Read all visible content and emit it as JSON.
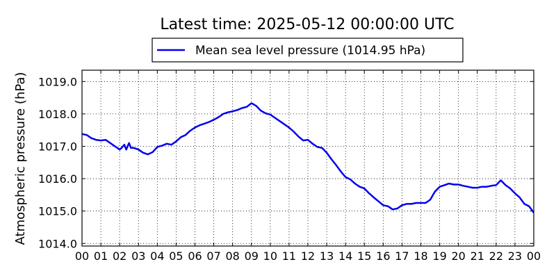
{
  "chart_data": {
    "type": "line",
    "title": "Latest time: 2025-05-12 00:00:00 UTC",
    "xlabel": "",
    "ylabel": "Atmospheric pressure (hPa)",
    "x_tick_labels": [
      "00",
      "01",
      "02",
      "03",
      "04",
      "05",
      "06",
      "07",
      "08",
      "09",
      "10",
      "11",
      "12",
      "13",
      "14",
      "15",
      "16",
      "17",
      "18",
      "19",
      "20",
      "21",
      "22",
      "23",
      "00"
    ],
    "y_tick_labels": [
      "1014.0",
      "1015.0",
      "1016.0",
      "1017.0",
      "1018.0",
      "1019.0"
    ],
    "y_ticks": [
      1014.0,
      1015.0,
      1016.0,
      1017.0,
      1018.0,
      1019.0
    ],
    "xlim": [
      0,
      24
    ],
    "ylim": [
      1013.92,
      1019.35
    ],
    "grid": true,
    "legend_position": "top-center",
    "series": [
      {
        "name": "Mean sea level pressure (1014.95 hPa)",
        "color": "#0000ee",
        "x": [
          0,
          0.25,
          0.5,
          0.75,
          1,
          1.25,
          1.5,
          1.75,
          2,
          2.1,
          2.25,
          2.35,
          2.5,
          2.6,
          2.75,
          3,
          3.25,
          3.5,
          3.75,
          4,
          4.25,
          4.5,
          4.75,
          5,
          5.25,
          5.5,
          5.75,
          6,
          6.25,
          6.5,
          6.75,
          7,
          7.25,
          7.5,
          7.75,
          8,
          8.25,
          8.5,
          8.75,
          9,
          9.1,
          9.25,
          9.5,
          9.75,
          10,
          10.25,
          10.5,
          10.75,
          11,
          11.25,
          11.5,
          11.75,
          12,
          12.25,
          12.5,
          12.75,
          13,
          13.25,
          13.5,
          13.75,
          14,
          14.25,
          14.5,
          14.75,
          15,
          15.25,
          15.5,
          15.75,
          16,
          16.25,
          16.5,
          16.75,
          17,
          17.25,
          17.5,
          17.75,
          18,
          18.25,
          18.5,
          18.75,
          19,
          19.25,
          19.5,
          19.75,
          20,
          20.25,
          20.5,
          20.75,
          21,
          21.25,
          21.5,
          21.75,
          22,
          22.25,
          22.5,
          22.75,
          23,
          23.25,
          23.5,
          23.75,
          24
        ],
        "values": [
          1017.38,
          1017.35,
          1017.25,
          1017.2,
          1017.18,
          1017.2,
          1017.1,
          1017.0,
          1016.9,
          1016.95,
          1017.05,
          1016.9,
          1017.1,
          1016.95,
          1016.95,
          1016.9,
          1016.8,
          1016.75,
          1016.82,
          1016.98,
          1017.02,
          1017.08,
          1017.05,
          1017.15,
          1017.28,
          1017.35,
          1017.48,
          1017.58,
          1017.65,
          1017.7,
          1017.75,
          1017.82,
          1017.9,
          1018.0,
          1018.05,
          1018.08,
          1018.12,
          1018.18,
          1018.22,
          1018.33,
          1018.3,
          1018.25,
          1018.1,
          1018.02,
          1017.98,
          1017.88,
          1017.78,
          1017.68,
          1017.58,
          1017.45,
          1017.3,
          1017.18,
          1017.2,
          1017.08,
          1016.98,
          1016.95,
          1016.8,
          1016.6,
          1016.42,
          1016.22,
          1016.05,
          1015.98,
          1015.85,
          1015.75,
          1015.7,
          1015.55,
          1015.42,
          1015.3,
          1015.18,
          1015.15,
          1015.05,
          1015.08,
          1015.18,
          1015.22,
          1015.22,
          1015.25,
          1015.25,
          1015.25,
          1015.35,
          1015.6,
          1015.75,
          1015.8,
          1015.85,
          1015.82,
          1015.82,
          1015.78,
          1015.75,
          1015.72,
          1015.72,
          1015.75,
          1015.75,
          1015.78,
          1015.8,
          1015.95,
          1015.8,
          1015.7,
          1015.55,
          1015.42,
          1015.22,
          1015.15,
          1014.95
        ]
      }
    ]
  }
}
